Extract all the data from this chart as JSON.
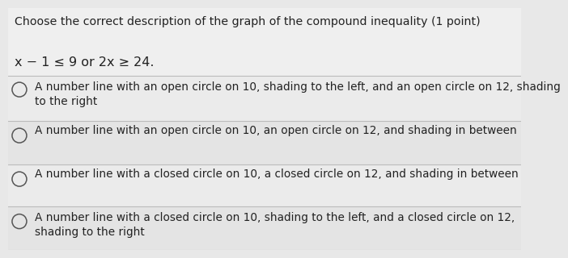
{
  "title": "Choose the correct description of the graph of the compound inequality (1 point)",
  "inequality": "x − 1 ≤ 9 or 2x ≥ 24.",
  "options": [
    "A number line with an open circle on 10, shading to the left, and an open circle on 12, shading\nto the right",
    "A number line with an open circle on 10, an open circle on 12, and shading in between",
    "A number line with a closed circle on 10, a closed circle on 12, and shading in between",
    "A number line with a closed circle on 10, shading to the left, and a closed circle on 12,\nshading to the right"
  ],
  "bg_color": "#e8e8e8",
  "header_bg": "#efefef",
  "option_bg_even": "#ebebeb",
  "option_bg_odd": "#e4e4e4",
  "divider_color": "#bbbbbb",
  "text_color": "#222222",
  "circle_color": "#555555",
  "title_fontsize": 10.2,
  "inequality_fontsize": 11.5,
  "option_fontsize": 9.8
}
